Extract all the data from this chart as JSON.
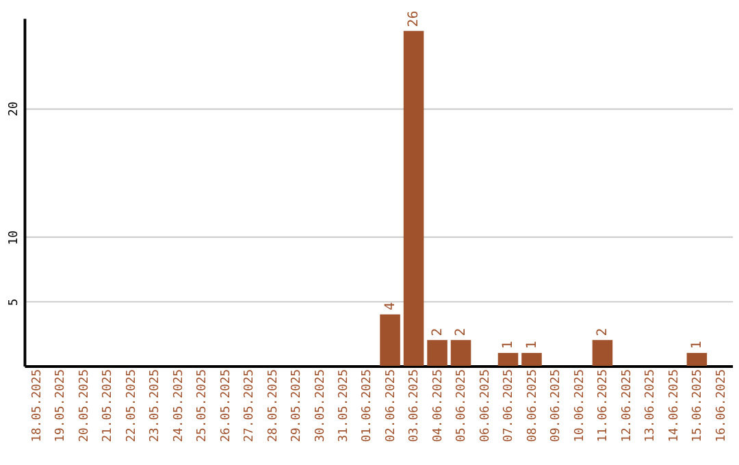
{
  "chart_data": {
    "type": "bar",
    "categories": [
      "18.05.2025",
      "19.05.2025",
      "20.05.2025",
      "21.05.2025",
      "22.05.2025",
      "23.05.2025",
      "24.05.2025",
      "25.05.2025",
      "26.05.2025",
      "27.05.2025",
      "28.05.2025",
      "29.05.2025",
      "30.05.2025",
      "31.05.2025",
      "01.06.2025",
      "02.06.2025",
      "03.06.2025",
      "04.06.2025",
      "05.06.2025",
      "06.06.2025",
      "07.06.2025",
      "08.06.2025",
      "09.06.2025",
      "10.06.2025",
      "11.06.2025",
      "12.06.2025",
      "13.06.2025",
      "14.06.2025",
      "15.06.2025",
      "16.06.2025"
    ],
    "values": [
      0,
      0,
      0,
      0,
      0,
      0,
      0,
      0,
      0,
      0,
      0,
      0,
      0,
      0,
      0,
      4,
      26,
      2,
      2,
      0,
      1,
      1,
      0,
      0,
      2,
      0,
      0,
      0,
      1,
      0
    ],
    "value_labels": [
      null,
      null,
      null,
      null,
      null,
      null,
      null,
      null,
      null,
      null,
      null,
      null,
      null,
      null,
      null,
      "4",
      "26",
      "2",
      "2",
      null,
      "1",
      "1",
      null,
      null,
      "2",
      null,
      null,
      null,
      "1",
      null
    ],
    "color": "#a0522d",
    "ylim": [
      0,
      27
    ],
    "yticks": [
      5,
      10,
      20
    ],
    "grid": "y"
  }
}
